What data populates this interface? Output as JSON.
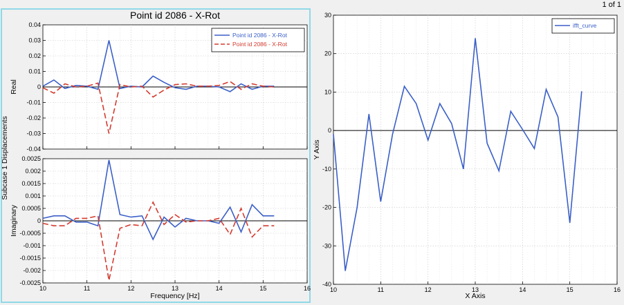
{
  "page_indicator": "1 of 1",
  "colors": {
    "blue": "#3a5fc8",
    "red": "#d43a2e",
    "axis": "#000000"
  },
  "left_chart": {
    "title": "Point id 2086 - X-Rot",
    "shared_ylabel": "Subcase 1 Displacements",
    "xlabel": "Frequency [Hz]"
  },
  "chart_data": [
    {
      "type": "line",
      "title": "Point id 2086 - X-Rot",
      "ylabel": "Real",
      "xlabel": "",
      "xlim": [
        10,
        16
      ],
      "ylim": [
        -0.04,
        0.04
      ],
      "xticks": [
        "10",
        "11",
        "12",
        "13",
        "14",
        "15",
        "16"
      ],
      "yticks": [
        "0.04",
        "0.03",
        "0.02",
        "0.01",
        "0",
        "-0.01",
        "-0.02",
        "-0.03",
        "-0.04"
      ],
      "ytick_values": [
        0.04,
        0.03,
        0.02,
        0.01,
        0,
        -0.01,
        -0.02,
        -0.03,
        -0.04
      ],
      "grid": true,
      "legend_position": "top-right",
      "x": [
        10.0,
        10.25,
        10.5,
        10.75,
        11.0,
        11.25,
        11.5,
        11.75,
        12.0,
        12.25,
        12.5,
        12.75,
        13.0,
        13.25,
        13.5,
        13.75,
        14.0,
        14.25,
        14.5,
        14.75,
        15.0,
        15.25
      ],
      "series": [
        {
          "name": "Point id 2086 - X-Rot",
          "color": "#3a5fc8",
          "dash": "solid",
          "values": [
            0.0005,
            0.0045,
            -0.001,
            0.001,
            0.0005,
            -0.0015,
            0.03,
            -0.001,
            0.0005,
            0.0,
            0.007,
            0.003,
            -0.0005,
            -0.0015,
            0.0005,
            0.0005,
            0.0,
            -0.003,
            0.002,
            -0.0015,
            0.0005,
            0.0005
          ]
        },
        {
          "name": "Point id 2086 - X-Rot",
          "color": "#d43a2e",
          "dash": "dashed",
          "values": [
            -0.0005,
            -0.004,
            0.002,
            0.0,
            0.0005,
            0.0025,
            -0.03,
            0.0015,
            0.0,
            0.0005,
            -0.0065,
            -0.002,
            0.0015,
            0.002,
            0.0005,
            0.0005,
            0.001,
            0.0035,
            -0.0015,
            0.002,
            0.0005,
            0.0
          ]
        }
      ]
    },
    {
      "type": "line",
      "title": "",
      "ylabel": "Imaginary",
      "xlabel": "Frequency [Hz]",
      "xlim": [
        10,
        16
      ],
      "ylim": [
        -0.0025,
        0.0025
      ],
      "xticks": [
        "10",
        "11",
        "12",
        "13",
        "14",
        "15",
        "16"
      ],
      "yticks": [
        "0.0025",
        "0.002",
        "0.0015",
        "0.001",
        "0.0005",
        "0",
        "-0.0005",
        "-0.001",
        "-0.0015",
        "-0.002",
        "-0.0025"
      ],
      "ytick_values": [
        0.0025,
        0.002,
        0.0015,
        0.001,
        0.0005,
        0,
        -0.0005,
        -0.001,
        -0.0015,
        -0.002,
        -0.0025
      ],
      "grid": true,
      "x": [
        10.0,
        10.25,
        10.5,
        10.75,
        11.0,
        11.25,
        11.5,
        11.75,
        12.0,
        12.25,
        12.5,
        12.75,
        13.0,
        13.25,
        13.5,
        13.75,
        14.0,
        14.25,
        14.5,
        14.75,
        15.0,
        15.25
      ],
      "series": [
        {
          "name": "Point id 2086 - X-Rot",
          "color": "#3a5fc8",
          "dash": "solid",
          "values": [
            0.0001,
            0.0002,
            0.0002,
            -5e-05,
            -5e-05,
            -0.0002,
            0.00245,
            0.00025,
            0.00015,
            0.0002,
            -0.00075,
            0.00015,
            -0.00025,
            0.0001,
            0.0,
            0.0,
            -0.0001,
            0.00055,
            -0.00045,
            0.00065,
            0.0002,
            0.0002
          ]
        },
        {
          "name": "Point id 2086 - X-Rot",
          "color": "#d43a2e",
          "dash": "dashed",
          "values": [
            -0.0001,
            -0.0002,
            -0.0002,
            0.0001,
            0.0001,
            0.0002,
            -0.0024,
            -0.0003,
            -0.00015,
            -0.0002,
            0.00075,
            -0.00015,
            0.00025,
            -5e-05,
            0.0,
            0.0,
            0.0001,
            -0.00055,
            0.0005,
            -0.00065,
            -0.0002,
            -0.0002
          ]
        }
      ]
    },
    {
      "type": "line",
      "title": "",
      "ylabel": "Y Axis",
      "xlabel": "X Axis",
      "xlim": [
        10,
        16
      ],
      "ylim": [
        -40,
        30
      ],
      "xticks": [
        "10",
        "11",
        "12",
        "13",
        "14",
        "15",
        "16"
      ],
      "yticks": [
        "30",
        "20",
        "10",
        "0",
        "-10",
        "-20",
        "-30",
        "-40"
      ],
      "ytick_values": [
        30,
        20,
        10,
        0,
        -10,
        -20,
        -30,
        -40
      ],
      "grid": true,
      "legend_position": "top-right",
      "x": [
        10.0,
        10.25,
        10.5,
        10.75,
        11.0,
        11.25,
        11.5,
        11.75,
        12.0,
        12.25,
        12.5,
        12.75,
        13.0,
        13.25,
        13.5,
        13.75,
        14.0,
        14.25,
        14.5,
        14.75,
        15.0,
        15.25
      ],
      "series": [
        {
          "name": "ifft_curve",
          "color": "#3a5fc8",
          "dash": "solid",
          "values": [
            -1,
            -36.5,
            -20,
            4.3,
            -18.5,
            -1,
            11.5,
            7,
            -2.5,
            7,
            1.8,
            -10,
            24,
            -3.3,
            -10.5,
            5,
            0.3,
            -4.7,
            10.7,
            3.5,
            -24,
            10.2
          ]
        }
      ]
    }
  ]
}
